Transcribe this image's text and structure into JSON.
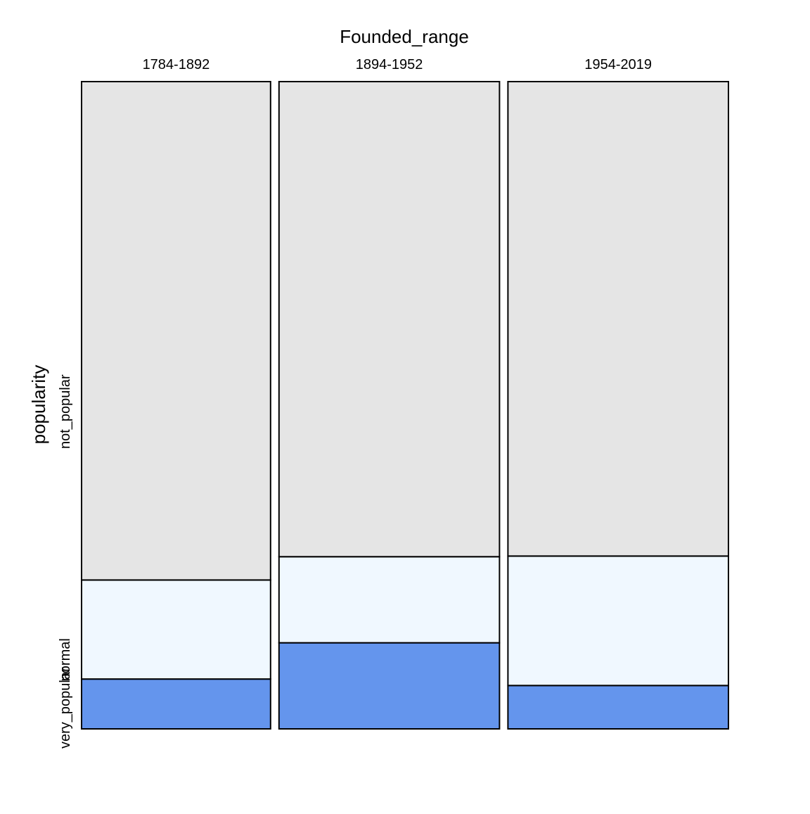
{
  "chart_data": {
    "type": "mosaic",
    "xlabel": "Founded_range",
    "ylabel": "popularity",
    "categories": [
      "1784-1892",
      "1894-1952",
      "1954-2019"
    ],
    "column_widths": [
      0.3,
      0.35,
      0.35
    ],
    "levels": [
      "very_popular",
      "normal",
      "not_popular"
    ],
    "series": [
      {
        "name": "very_popular",
        "color": "#6495ED",
        "values": [
          0.077,
          0.133,
          0.067
        ]
      },
      {
        "name": "normal",
        "color": "#F0F8FF",
        "values": [
          0.153,
          0.133,
          0.2
        ]
      },
      {
        "name": "not_popular",
        "color": "#E5E5E5",
        "values": [
          0.77,
          0.734,
          0.733
        ]
      }
    ],
    "grid": false,
    "legend": "none"
  }
}
